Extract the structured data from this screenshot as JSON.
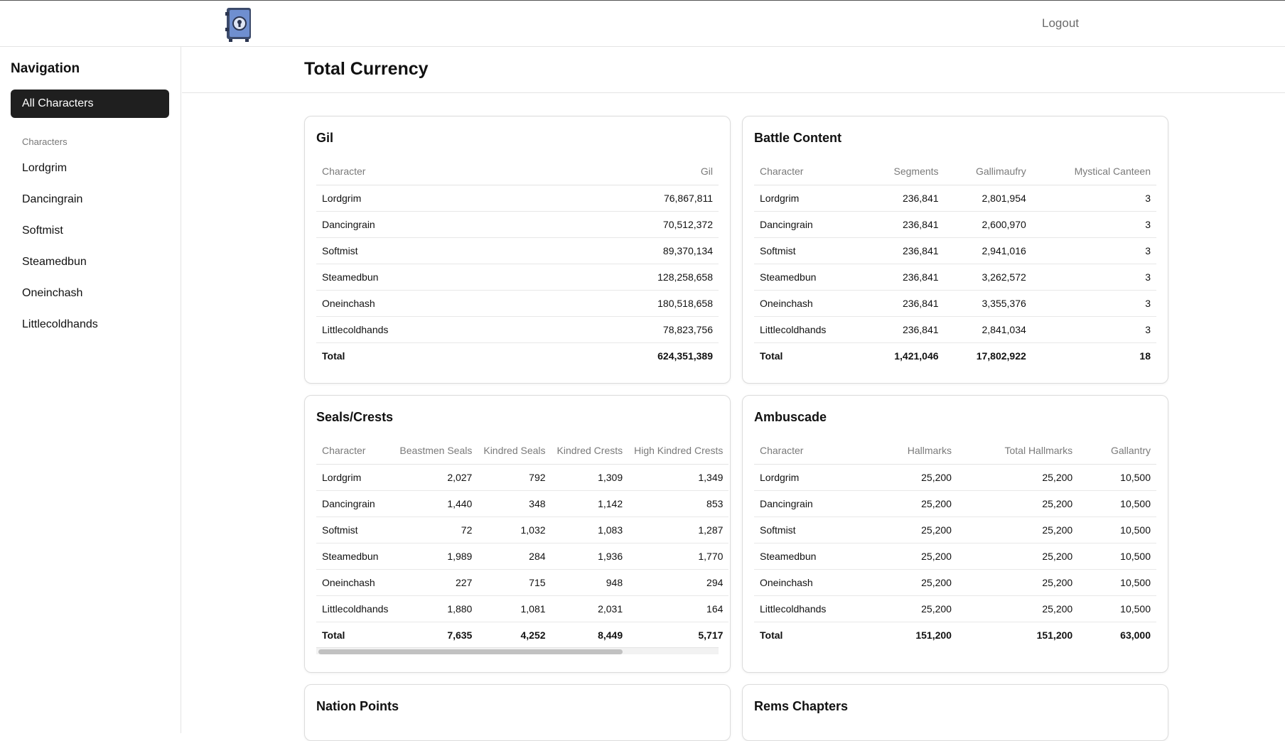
{
  "topbar": {
    "logout_label": "Logout"
  },
  "sidebar": {
    "title": "Navigation",
    "active_item": "All Characters",
    "section_label": "Characters",
    "items": [
      "Lordgrim",
      "Dancingrain",
      "Softmist",
      "Steamedbun",
      "Oneinchash",
      "Littlecoldhands"
    ]
  },
  "page": {
    "title": "Total Currency"
  },
  "cards": {
    "gil": {
      "title": "Gil",
      "headers": [
        "Character",
        "Gil"
      ],
      "rows": [
        [
          "Lordgrim",
          "76,867,811"
        ],
        [
          "Dancingrain",
          "70,512,372"
        ],
        [
          "Softmist",
          "89,370,134"
        ],
        [
          "Steamedbun",
          "128,258,658"
        ],
        [
          "Oneinchash",
          "180,518,658"
        ],
        [
          "Littlecoldhands",
          "78,823,756"
        ]
      ],
      "total": [
        "Total",
        "624,351,389"
      ]
    },
    "battle": {
      "title": "Battle Content",
      "headers": [
        "Character",
        "Segments",
        "Gallimaufry",
        "Mystical Canteen"
      ],
      "rows": [
        [
          "Lordgrim",
          "236,841",
          "2,801,954",
          "3"
        ],
        [
          "Dancingrain",
          "236,841",
          "2,600,970",
          "3"
        ],
        [
          "Softmist",
          "236,841",
          "2,941,016",
          "3"
        ],
        [
          "Steamedbun",
          "236,841",
          "3,262,572",
          "3"
        ],
        [
          "Oneinchash",
          "236,841",
          "3,355,376",
          "3"
        ],
        [
          "Littlecoldhands",
          "236,841",
          "2,841,034",
          "3"
        ]
      ],
      "total": [
        "Total",
        "1,421,046",
        "17,802,922",
        "18"
      ]
    },
    "seals": {
      "title": "Seals/Crests",
      "headers": [
        "Character",
        "Beastmen Seals",
        "Kindred Seals",
        "Kindred Crests",
        "High Kindred Crests"
      ],
      "rows": [
        [
          "Lordgrim",
          "2,027",
          "792",
          "1,309",
          "1,349"
        ],
        [
          "Dancingrain",
          "1,440",
          "348",
          "1,142",
          "853"
        ],
        [
          "Softmist",
          "72",
          "1,032",
          "1,083",
          "1,287"
        ],
        [
          "Steamedbun",
          "1,989",
          "284",
          "1,936",
          "1,770"
        ],
        [
          "Oneinchash",
          "227",
          "715",
          "948",
          "294"
        ],
        [
          "Littlecoldhands",
          "1,880",
          "1,081",
          "2,031",
          "164"
        ]
      ],
      "total": [
        "Total",
        "7,635",
        "4,252",
        "8,449",
        "5,717"
      ]
    },
    "ambuscade": {
      "title": "Ambuscade",
      "headers": [
        "Character",
        "Hallmarks",
        "Total Hallmarks",
        "Gallantry"
      ],
      "rows": [
        [
          "Lordgrim",
          "25,200",
          "25,200",
          "10,500"
        ],
        [
          "Dancingrain",
          "25,200",
          "25,200",
          "10,500"
        ],
        [
          "Softmist",
          "25,200",
          "25,200",
          "10,500"
        ],
        [
          "Steamedbun",
          "25,200",
          "25,200",
          "10,500"
        ],
        [
          "Oneinchash",
          "25,200",
          "25,200",
          "10,500"
        ],
        [
          "Littlecoldhands",
          "25,200",
          "25,200",
          "10,500"
        ]
      ],
      "total": [
        "Total",
        "151,200",
        "151,200",
        "63,000"
      ]
    },
    "nation": {
      "title": "Nation Points"
    },
    "rems": {
      "title": "Rems Chapters"
    }
  }
}
